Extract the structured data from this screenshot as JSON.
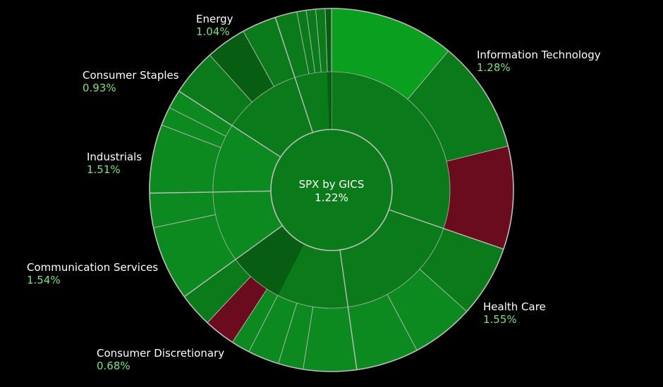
{
  "chart_data": {
    "type": "sunburst",
    "title": "SPX by GICS",
    "total_change": "1.22%",
    "colors": {
      "background": "#000000",
      "divider": "#bdbdbd",
      "gain_strong": "#0a9f1f",
      "gain": "#0c8a20",
      "gain_mid": "#0a7a1a",
      "gain_dark": "#075e12",
      "loss": "#6a0b1e",
      "center": "#0a7a1a"
    },
    "sectors": [
      {
        "name": "Information Technology",
        "change": "1.28%",
        "tone": "gain_mid",
        "sub": [
          {
            "tone": "gain_strong",
            "inner": "gain_mid"
          },
          {
            "tone": "gain_mid",
            "inner": "gain_mid"
          },
          {
            "tone": "loss",
            "inner": "gain_mid"
          }
        ]
      },
      {
        "name": "Health Care",
        "change": "1.55%",
        "tone": "gain_mid",
        "sub": [
          {
            "tone": "gain_mid",
            "inner": "gain_mid"
          },
          {
            "tone": "gain",
            "inner": "gain_mid"
          },
          {
            "tone": "gain",
            "inner": "gain_mid"
          }
        ]
      },
      {
        "name": "Consumer Discretionary",
        "change": "0.68%",
        "tone": "gain_dark",
        "sub": [
          {
            "tone": "gain",
            "inner": "gain_mid"
          },
          {
            "tone": "gain",
            "inner": "gain_mid"
          },
          {
            "tone": "gain",
            "inner": "gain_mid"
          },
          {
            "tone": "gain",
            "inner": "gain_dark"
          },
          {
            "tone": "loss",
            "inner": "gain_dark"
          },
          {
            "tone": "gain_mid",
            "inner": "gain_dark"
          }
        ]
      },
      {
        "name": "Communication Services",
        "change": "1.54%",
        "tone": "gain",
        "sub": [
          {
            "tone": "gain",
            "inner": "gain"
          },
          {
            "tone": "gain",
            "inner": "gain"
          }
        ]
      },
      {
        "name": "Industrials",
        "change": "1.51%",
        "tone": "gain",
        "sub": [
          {
            "tone": "gain",
            "inner": "gain"
          },
          {
            "tone": "gain",
            "inner": "gain"
          },
          {
            "tone": "gain",
            "inner": "gain"
          }
        ]
      },
      {
        "name": "Consumer Staples",
        "change": "0.93%",
        "tone": "gain_mid",
        "sub": [
          {
            "tone": "gain_mid",
            "inner": "gain_mid"
          },
          {
            "tone": "gain_dark",
            "inner": "gain_mid"
          },
          {
            "tone": "gain_mid",
            "inner": "gain_mid"
          }
        ]
      },
      {
        "name": "Energy",
        "change": "1.04%",
        "tone": "gain_mid",
        "sub": [
          {
            "tone": "gain_mid",
            "inner": "gain_mid"
          },
          {
            "tone": "gain_mid",
            "inner": "gain_mid"
          },
          {
            "tone": "gain_mid",
            "inner": "gain_mid"
          },
          {
            "tone": "gain_mid",
            "inner": "gain_mid"
          },
          {
            "tone": "gain_dark",
            "inner": "gain_dark"
          }
        ]
      }
    ]
  }
}
